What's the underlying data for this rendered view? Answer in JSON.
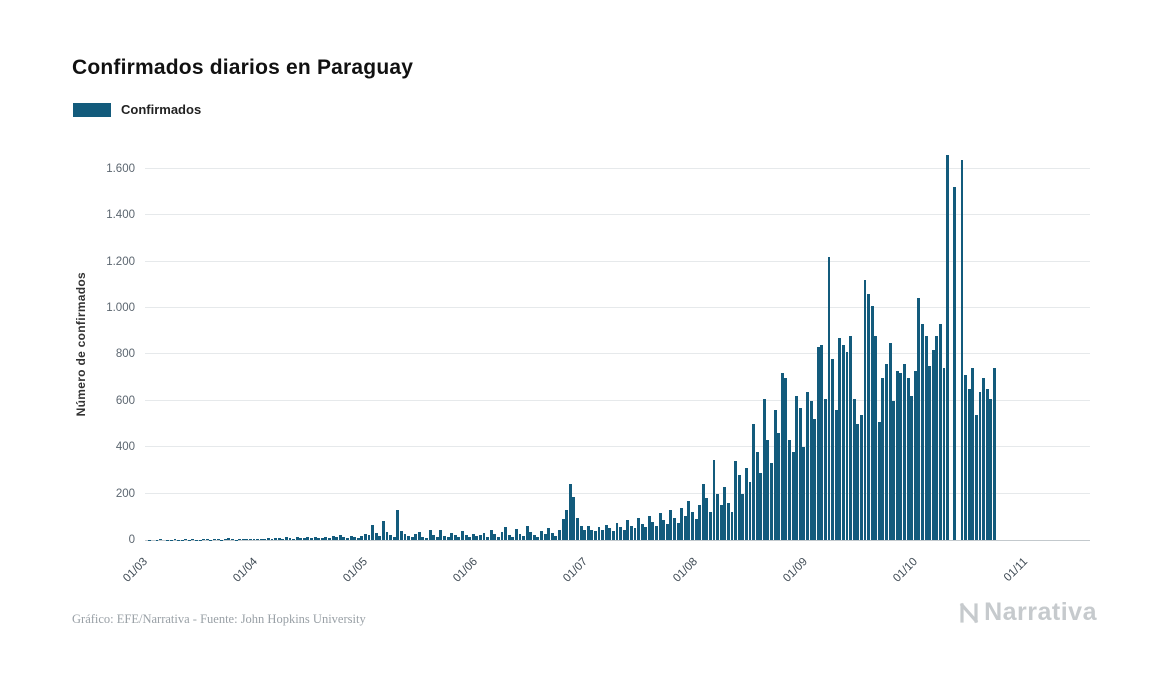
{
  "title": "Confirmados diarios en Paraguay",
  "legend": {
    "label": "Confirmados",
    "color": "#135b7c"
  },
  "y_axis": {
    "title": "Número de confirmados",
    "ticks": [
      "0",
      "200",
      "400",
      "600",
      "800",
      "1.000",
      "1.200",
      "1.400",
      "1.600"
    ]
  },
  "x_axis": {
    "ticks": [
      "01/03",
      "01/04",
      "01/05",
      "01/06",
      "01/07",
      "01/08",
      "01/09",
      "01/10",
      "01/11"
    ]
  },
  "footer": {
    "credit": "Gráfico: EFE/Narrativa - Fuente: John Hopkins University",
    "logo": "Narrativa"
  },
  "chart_data": {
    "type": "bar",
    "title": "Confirmados diarios en Paraguay",
    "xlabel": "",
    "ylabel": "Número de confirmados",
    "ylim": [
      0,
      1690
    ],
    "grid": "horizontal",
    "legend_position": "top-left",
    "x_tick_labels": [
      "01/03",
      "01/04",
      "01/05",
      "01/06",
      "01/07",
      "01/08",
      "01/09",
      "01/10",
      "01/11"
    ],
    "x_span_days": 245,
    "start_tick": "01/03",
    "series": [
      {
        "name": "Confirmados",
        "values": [
          2,
          0,
          1,
          3,
          0,
          2,
          1,
          4,
          2,
          1,
          3,
          2,
          5,
          1,
          2,
          4,
          3,
          2,
          6,
          3,
          2,
          4,
          7,
          3,
          2,
          5,
          4,
          3,
          6,
          4,
          5,
          6,
          4,
          8,
          5,
          10,
          7,
          6,
          12,
          8,
          6,
          14,
          9,
          7,
          11,
          8,
          15,
          10,
          8,
          13,
          9,
          16,
          11,
          22,
          12,
          9,
          17,
          12,
          10,
          18,
          25,
          21,
          65,
          30,
          18,
          80,
          35,
          22,
          15,
          130,
          40,
          28,
          18,
          12,
          25,
          35,
          15,
          10,
          42,
          20,
          15,
          45,
          18,
          12,
          30,
          22,
          15,
          38,
          20,
          12,
          28,
          16,
          20,
          32,
          15,
          45,
          25,
          12,
          35,
          55,
          20,
          15,
          48,
          28,
          18,
          60,
          35,
          22,
          15,
          40,
          25,
          52,
          30,
          18,
          45,
          90,
          130,
          240,
          185,
          95,
          60,
          45,
          60,
          45,
          38,
          55,
          42,
          65,
          50,
          40,
          72,
          58,
          45,
          85,
          62,
          50,
          95,
          70,
          55,
          105,
          78,
          60,
          115,
          88,
          68,
          130,
          95,
          72,
          140,
          105,
          168,
          120,
          90,
          150,
          240,
          180,
          120,
          345,
          200,
          150,
          230,
          160,
          120,
          340,
          280,
          200,
          310,
          250,
          500,
          380,
          290,
          610,
          430,
          330,
          560,
          460,
          720,
          700,
          430,
          380,
          620,
          570,
          400,
          640,
          600,
          520,
          830,
          840,
          610,
          1220,
          780,
          560,
          870,
          840,
          810,
          880,
          610,
          500,
          540,
          1120,
          1060,
          1010,
          880,
          510,
          700,
          760,
          850,
          600,
          730,
          720,
          760,
          700,
          620,
          730,
          1045,
          930,
          880,
          750,
          820,
          880,
          930,
          740,
          1660,
          0,
          1520,
          0,
          1640,
          710,
          650,
          740,
          540,
          640,
          700,
          650,
          610,
          740
        ]
      }
    ]
  }
}
